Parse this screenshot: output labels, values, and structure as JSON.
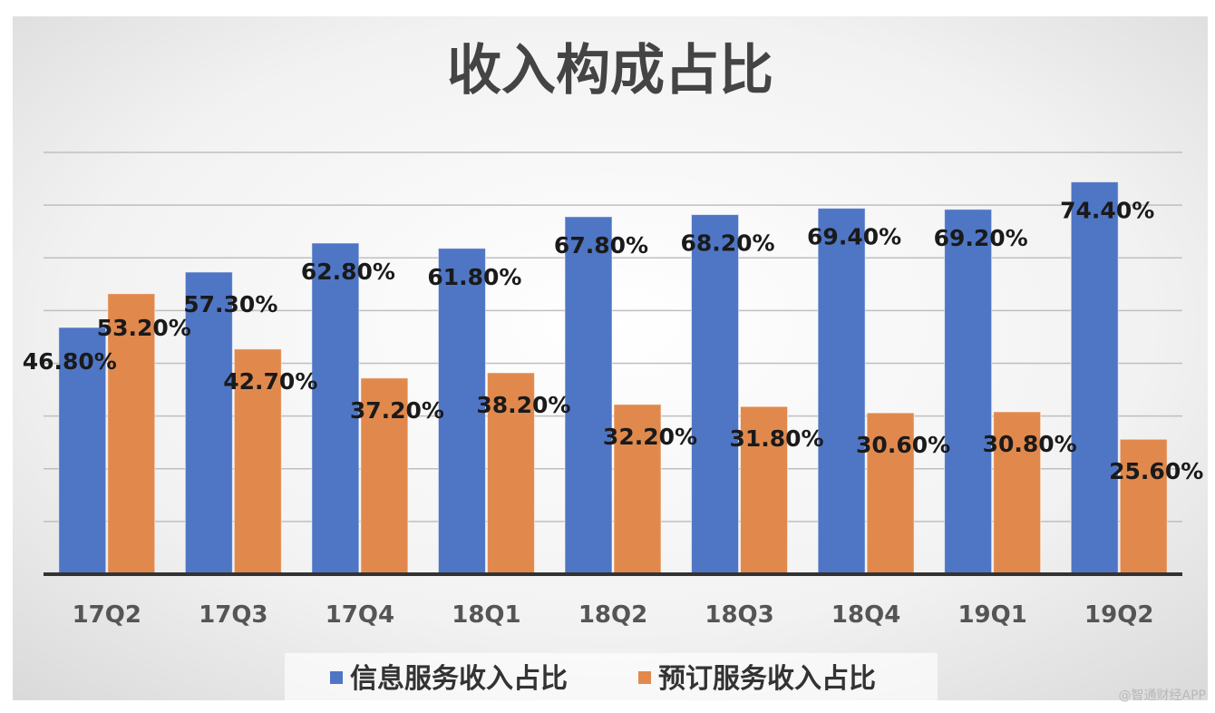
{
  "chart_data": {
    "type": "bar",
    "title": "收入构成占比",
    "categories": [
      "17Q2",
      "17Q3",
      "17Q4",
      "18Q1",
      "18Q2",
      "18Q3",
      "18Q4",
      "19Q1",
      "19Q2"
    ],
    "series": [
      {
        "name": "信息服务收入占比",
        "values": [
          46.8,
          57.3,
          62.8,
          61.8,
          67.8,
          68.2,
          69.4,
          69.2,
          74.4
        ],
        "labels": [
          "46.80%",
          "57.30%",
          "62.80%",
          "61.80%",
          "67.80%",
          "68.20%",
          "69.40%",
          "69.20%",
          "74.40%"
        ],
        "color": "#4f76c5"
      },
      {
        "name": "预订服务收入占比",
        "values": [
          53.2,
          42.7,
          37.2,
          38.2,
          32.2,
          31.8,
          30.6,
          30.8,
          25.6
        ],
        "labels": [
          "53.20%",
          "42.70%",
          "37.20%",
          "38.20%",
          "32.20%",
          "31.80%",
          "30.60%",
          "30.80%",
          "25.60%"
        ],
        "color": "#e1894d"
      }
    ],
    "ylim": [
      0,
      80
    ],
    "grid": true,
    "legend": "bottom"
  },
  "watermark": "@智通财经APP"
}
